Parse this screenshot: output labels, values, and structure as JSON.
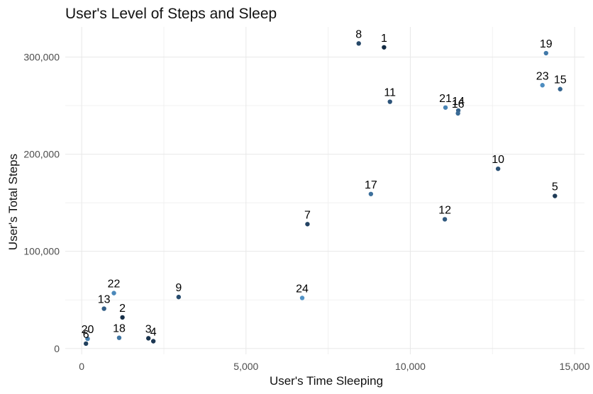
{
  "chart_data": {
    "type": "scatter",
    "title": "User's Level of Steps and Sleep",
    "xlabel": "User's Time Sleeping",
    "ylabel": "User's Total Steps",
    "xlim": [
      -500,
      15300
    ],
    "ylim": [
      -6000,
      331000
    ],
    "x_ticks": [
      {
        "value": 0,
        "label": "0"
      },
      {
        "value": 5000,
        "label": "5,000"
      },
      {
        "value": 10000,
        "label": "10,000"
      },
      {
        "value": 15000,
        "label": "15,000"
      }
    ],
    "y_ticks": [
      {
        "value": 0,
        "label": "0"
      },
      {
        "value": 100000,
        "label": "100,000"
      },
      {
        "value": 200000,
        "label": "200,000"
      },
      {
        "value": 300000,
        "label": "300,000"
      }
    ],
    "grid": true,
    "legend": "none",
    "color_scale": [
      "#132b43",
      "#56b1f7"
    ],
    "points": [
      {
        "label": "1",
        "x": 9200,
        "y": 310000,
        "color": "#132b43"
      },
      {
        "label": "2",
        "x": 1240,
        "y": 32000,
        "color": "#172f48"
      },
      {
        "label": "3",
        "x": 2030,
        "y": 10500,
        "color": "#1a344e"
      },
      {
        "label": "4",
        "x": 2180,
        "y": 7500,
        "color": "#1c3753"
      },
      {
        "label": "5",
        "x": 14400,
        "y": 157000,
        "color": "#1e3b57"
      },
      {
        "label": "6",
        "x": 130,
        "y": 5000,
        "color": "#21405d"
      },
      {
        "label": "7",
        "x": 6870,
        "y": 128000,
        "color": "#234363"
      },
      {
        "label": "8",
        "x": 8430,
        "y": 314000,
        "color": "#264868"
      },
      {
        "label": "9",
        "x": 2950,
        "y": 53000,
        "color": "#284c6e"
      },
      {
        "label": "10",
        "x": 12670,
        "y": 185000,
        "color": "#2a5074"
      },
      {
        "label": "11",
        "x": 9380,
        "y": 254000,
        "color": "#2d5479"
      },
      {
        "label": "12",
        "x": 11050,
        "y": 133000,
        "color": "#30597f"
      },
      {
        "label": "13",
        "x": 680,
        "y": 41000,
        "color": "#325d85"
      },
      {
        "label": "14",
        "x": 11460,
        "y": 245000,
        "color": "#35628b"
      },
      {
        "label": "15",
        "x": 14560,
        "y": 267000,
        "color": "#376690"
      },
      {
        "label": "16",
        "x": 11450,
        "y": 242000,
        "color": "#3a6b96"
      },
      {
        "label": "17",
        "x": 8800,
        "y": 159000,
        "color": "#3d709c"
      },
      {
        "label": "18",
        "x": 1140,
        "y": 11000,
        "color": "#4075a2"
      },
      {
        "label": "19",
        "x": 14130,
        "y": 304000,
        "color": "#4279a8"
      },
      {
        "label": "20",
        "x": 180,
        "y": 10000,
        "color": "#457eae"
      },
      {
        "label": "21",
        "x": 11070,
        "y": 248000,
        "color": "#4883b4"
      },
      {
        "label": "22",
        "x": 980,
        "y": 57000,
        "color": "#4b88ba"
      },
      {
        "label": "23",
        "x": 14020,
        "y": 271000,
        "color": "#4e8dc0"
      },
      {
        "label": "24",
        "x": 6710,
        "y": 52000,
        "color": "#5192c6"
      }
    ]
  }
}
